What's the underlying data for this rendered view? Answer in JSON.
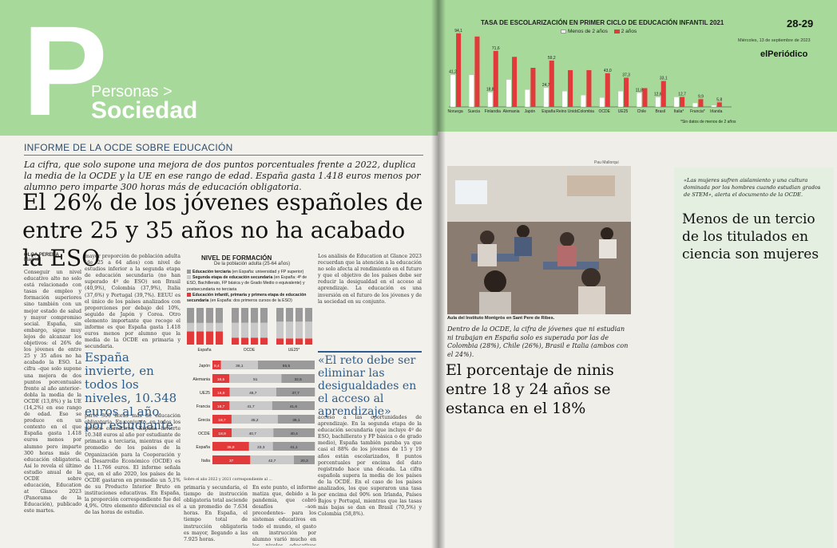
{
  "left_page": {
    "section_pre": "Personas >",
    "section": "Sociedad",
    "big_letter": "P",
    "kicker": "INFORME DE LA OCDE SOBRE EDUCACIÓN",
    "subtitle": "La cifra, que solo supone una mejora de dos puntos porcentuales frente a 2022, duplica la media de la OCDE y la UE en ese rango de edad. España gasta 1.418 euros menos por alumno pero imparte 300 horas más de educación obligatoria.",
    "headline": "El 26% de los jóvenes españoles de entre 25 y 35 años no ha acabado la ESO",
    "byline_name": "OLGA PEREDA",
    "byline_city": "Madrid",
    "col1_text": "Conseguir un nivel educativo alto no solo está relacionado con tasas de empleo y formación superiores sino también con un mejor estado de salud y mayor compromiso social. España, sin embargo, sigue muy lejos de alcanzar los objetivos: el 26% de los jóvenes de entre 25 y 35 años no ha acabado la ESO. La cifra –que solo supone una mejora de dos puntos porcentuales frente al año anterior– dobla la media de la OCDE (13,8%) y la UE (14,2%) en ese rango de edad. Eso se produce en un contexto en el que España gasta 1.418 euros menos por alumno pero imparte 300 horas más de educación obligatoria. Así lo revela el último estudio anual de la OCDE sobre educación, Education at Glance 2023 (Panorama de la Educación), publicado este martes.",
    "col2_text": "mayor proporción de población adulta (de 25 a 64 años) con nivel de estudios inferior a la segunda etapa de educación secundaria (no han superado 4º de ESO) son Brasil (40,9%), Colombia (37,9%), Italia (37,6%) y Portugal (39,7%). EEUU es el único de los países analizados con proporciones por debajo del 10%, seguido de Japón y Corea. Otro elemento importante que recoge el informe es que España gasta 1.418 euros menos por alumno que la media de la OCDE en primaria y secundaria.",
    "col2_head": "España invierte, en todos los niveles, 10.348 euros al año por estudiante",
    "col2b_text": "parte 300 horas más de educación obligatoria. En conjunto, en todos los niveles educativos, España invierte 10.348 euros al año por estudiante de primaria a terciaria, mientras que el promedio de los países de la Organización para la Cooperación y el Desarrollo Económico (OCDE) es de 11.766 euros. El informe señala que, en el año 2020, los países de la OCDE gastaron en promedio un 5,1% de su Producto Interior Bruto en instituciones educativas. En España, la proporción correspondiente fue del 4,9%. Otro elemento diferencial es el de las horas de estudio.",
    "col3_text": "Los análisis de Education at Glance 2023 recuerdan que la atención a la educación no solo afecta al rendimiento en el futuro y que el objetivo de los países debe ser reducir la desigualdad en el acceso al aprendizaje. La educación es una inversión en el futuro de los jóvenes y de la sociedad en su conjunto.",
    "col4_text": "acceso a las oportunidades de aprendizaje. En la segunda etapa de la educación secundaria (que incluye 4º de ESO, bachillerato y FP básica o de grado medio), España también paraba ya que casi el 88% de los jóvenes de 15 y 19 años están escolarizados, 8 puntos porcentuales por encima del dato registrado hace una década. La cifra española supera la media de los países de la OCDE. En el caso de los países analizados, los que superaron una tasa por encima del 90% son Irlanda, Países Bajos y Portugal, mientras que las tasas más bajas se dan en Brasil (70,5%) y Colombia (58,8%).",
    "col5_text": "primaria y secundaria, el tiempo de instrucción obligatoria total asciende a un promedio de 7.634 horas. En España, el tiempo total de instrucción obligatoria es mayor, llegando a las 7.925 horas.",
    "col6_text": "En este punto, el informe matiza que, debido a la pandemia, que cobró desafíos –son precedentes– para los sistemas educativos en todo el mundo, el gasto en instrucción por alumno varió mucho en los niveles educativos por estudiante a",
    "pull_quote": "«El reto debe ser eliminar las desigualdades en el acceso al aprendizaje»"
  },
  "nivel_chart": {
    "title": "NIVEL DE FORMACIÓN",
    "subtitle": "De la población adulta (25-64 años)",
    "legend": [
      {
        "label": "Educación terciaria",
        "detail": "(en España: universidad y FP superior)",
        "color": "#9a9a9a"
      },
      {
        "label": "Segunda etapa de educación secundaria",
        "detail": "(en España: 4º de ESO, Bachillerato, FP básica y de Grado Medio o equivalente) y postsecundaria no terciaria",
        "color": "#c9c9c9"
      },
      {
        "label": "Educación infantil, primaria y primera etapa de educación secundaria",
        "detail": "(en España: dos primeros cursos de la ESO)",
        "color": "#e23a3a"
      }
    ]
  },
  "horizontal_bars": {
    "countries": [
      "Japón",
      "Alemania",
      "UE25",
      "Francia",
      "Grecia",
      "OCDE",
      "España",
      "Italia"
    ],
    "values": [
      [
        8.4,
        36.1,
        55.5
      ],
      [
        16.5,
        51.0,
        32.5
      ],
      [
        16.8,
        45.7,
        37.7
      ],
      [
        16.7,
        41.7,
        41.6
      ],
      [
        18.7,
        45.2,
        36.1
      ],
      [
        18.9,
        40.7,
        40.4
      ],
      [
        35.8,
        23.3,
        41.1
      ],
      [
        37.0,
        42.7,
        20.3
      ]
    ],
    "note": "Sobre el año 2022 y 2021 correspondiente al ..."
  },
  "right_page": {
    "page_number": "28-29",
    "date": "Miércoles, 13 de septiembre de 2023",
    "logo": "elPeriódico",
    "photo_credit": "Pau Mallorqui",
    "caption": "Aula del Instituto Montgròs en Sant Pere de Ribes.",
    "lede": "Dentro de la OCDE, la cifra de jóvenes que ni estudian ni trabajan en España solo es superada por las de Colombia (28%), Chile (26%), Brasil e Italia (ambos con el 24%).",
    "headline": "El porcentaje de ninis entre 18 y 24 años se estanca en el 18%",
    "sidebar_quote": "«Las mujeres sufren aislamiento y una cultura dominada por los hombres cuando estudian grados de STEM», alerta el documento de la OCDE.",
    "sidebar_headline": "Menos de un tercio de los titulados en ciencia son mujeres"
  },
  "chart_data": {
    "type": "bar",
    "title": "TASA DE ESCOLARIZACIÓN EN PRIMER CICLO DE EDUCACIÓN INFANTIL 2021",
    "categories": [
      "Noruega",
      "Suecia",
      "Finlandia",
      "Alemania",
      "Japón",
      "España",
      "Reino Unido",
      "Colombia",
      "OCDE",
      "UE25",
      "Chile",
      "Brasil",
      "Italia*",
      "Francia*",
      "Irlanda"
    ],
    "series": [
      {
        "name": "Menos de 2 años",
        "color": "#ffffff",
        "values": [
          41.2,
          41.0,
          18.8,
          35.0,
          22.0,
          24.7,
          20.0,
          15.0,
          11.8,
          20.0,
          18.0,
          12.6,
          12.7,
          5.0,
          2.0
        ]
      },
      {
        "name": "2 años",
        "color": "#e23a3a",
        "values": [
          94.1,
          90.0,
          71.6,
          64.0,
          50.0,
          59.2,
          47.0,
          47.0,
          43.0,
          37.3,
          24.0,
          33.1,
          12.7,
          9.9,
          5.8
        ]
      }
    ],
    "data_labels": [
      "41,2",
      "94,1",
      "18,8",
      "71,6",
      "24,7",
      "59,2",
      "43,0",
      "37,3",
      "11,8",
      "12,6",
      "33,1",
      "12,7",
      "9,9",
      "5,8"
    ],
    "footnote": "*Sin datos de menos de 2 años"
  }
}
